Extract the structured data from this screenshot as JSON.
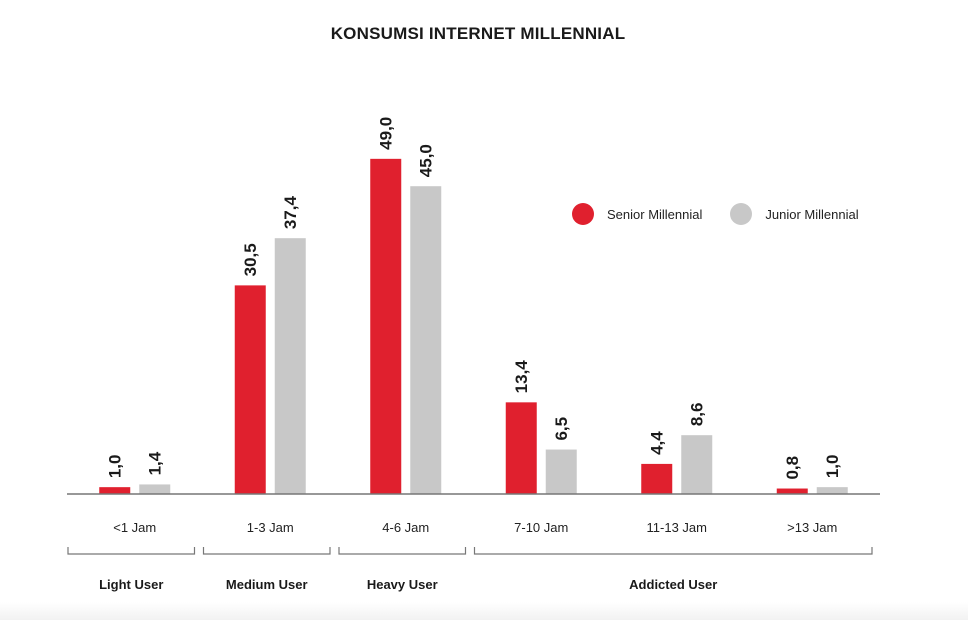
{
  "colors": {
    "senior": "#e0202e",
    "junior": "#c8c8c8",
    "axis": "#777777",
    "text": "#1a1a1a"
  },
  "legend": {
    "senior": "Senior Millennial",
    "junior": "Junior Millennial"
  },
  "chart_data": {
    "type": "bar",
    "title": "KONSUMSI INTERNET MILLENNIAL",
    "xlabel": "",
    "ylabel": "",
    "ylim": [
      0,
      50
    ],
    "grid": false,
    "legend_position": "top-right",
    "categories": [
      "<1 Jam",
      "1-3 Jam",
      "4-6 Jam",
      "7-10 Jam",
      "11-13 Jam",
      ">13 Jam"
    ],
    "series": [
      {
        "name": "Senior Millennial",
        "values": [
          1.0,
          30.5,
          49.0,
          13.4,
          4.4,
          0.8
        ],
        "labels": [
          "1,0",
          "30,5",
          "49,0",
          "13,4",
          "4,4",
          "0,8"
        ]
      },
      {
        "name": "Junior Millennial",
        "values": [
          1.4,
          37.4,
          45.0,
          6.5,
          8.6,
          1.0
        ],
        "labels": [
          "1,4",
          "37,4",
          "45,0",
          "6,5",
          "8,6",
          "1,0"
        ]
      }
    ],
    "groups": [
      {
        "label": "Light User",
        "from": 0,
        "to": 0
      },
      {
        "label": "Medium User",
        "from": 1,
        "to": 1
      },
      {
        "label": "Heavy User",
        "from": 2,
        "to": 2
      },
      {
        "label": "Addicted User",
        "from": 3,
        "to": 5
      }
    ]
  }
}
